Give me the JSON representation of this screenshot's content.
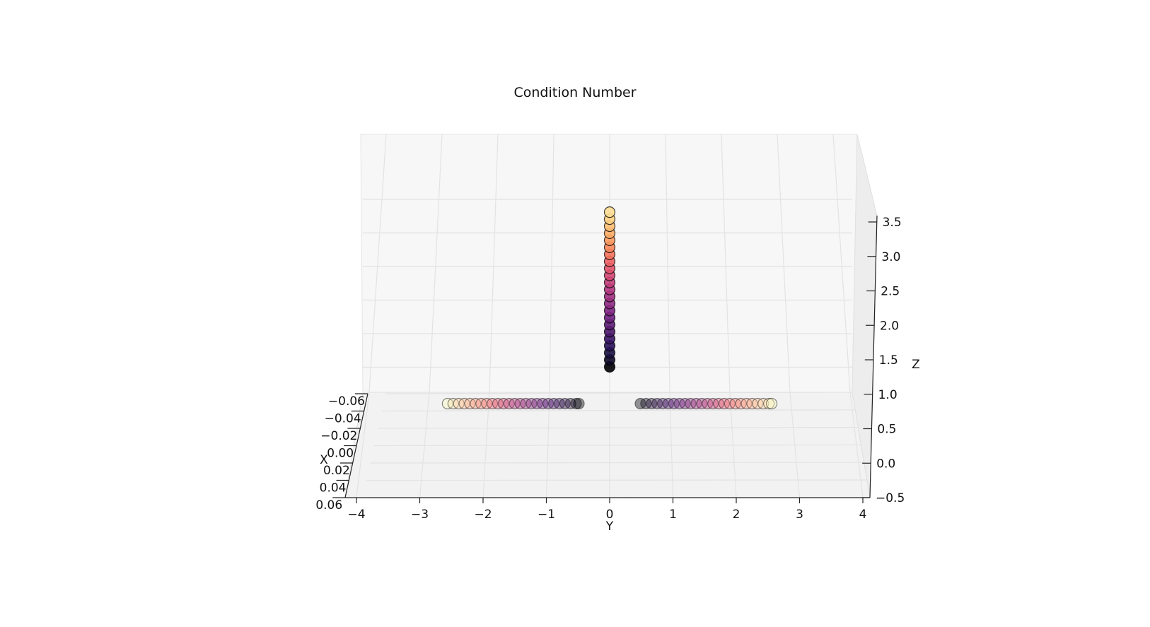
{
  "chart_data": {
    "type": "scatter",
    "title": "Condition Number",
    "xlabel": "X",
    "ylabel": "Y",
    "zlabel": "Z",
    "projection": "3d",
    "grid": true,
    "x_ticks": [
      "−0.06",
      "−0.04",
      "−0.02",
      "0.00",
      "0.02",
      "0.04",
      "0.06"
    ],
    "y_ticks": [
      "−4",
      "−3",
      "−2",
      "−1",
      "0",
      "1",
      "2",
      "3",
      "4"
    ],
    "z_ticks": [
      "−0.5",
      "0.0",
      "0.5",
      "1.0",
      "1.5",
      "2.0",
      "2.5",
      "3.0",
      "3.5"
    ],
    "xlim": [
      -0.06,
      0.06
    ],
    "ylim": [
      -4,
      4
    ],
    "zlim": [
      -0.5,
      3.7
    ],
    "colormap": "magma",
    "series": [
      {
        "points_y": [
          -2.9,
          -2.8,
          -2.7,
          -2.6,
          -2.5,
          -2.4,
          -2.3,
          -2.2,
          -2.1,
          -2.0,
          -1.9,
          -1.8,
          -1.7,
          -1.6,
          -1.5,
          -1.4,
          -1.3,
          -1.2,
          -1.1,
          -1.0,
          -0.9,
          -0.8,
          -0.7,
          -0.6,
          -0.55
        ],
        "points_x": 0,
        "points_z": 0.95,
        "colors": [
          "#fcfdbf",
          "#fde6b0",
          "#fed5a1",
          "#fec395",
          "#feb08a",
          "#fc9f81",
          "#f98e7b",
          "#f57c76",
          "#ef6a73",
          "#e45a74",
          "#d84c76",
          "#c9437a",
          "#ba3c7c",
          "#aa347f",
          "#9a2f80",
          "#8a2a80",
          "#7a2480",
          "#6a1f7d",
          "#5a1a76",
          "#4a176b",
          "#3b135c",
          "#2d1049",
          "#1f0c35",
          "#120922",
          "#000004"
        ],
        "alpha": 0.4
      },
      {
        "points_y": [
          0.55,
          0.65,
          0.75,
          0.85,
          0.95,
          1.05,
          1.15,
          1.25,
          1.35,
          1.45,
          1.55,
          1.65,
          1.75,
          1.85,
          1.95,
          2.05,
          2.15,
          2.25,
          2.35,
          2.45,
          2.55,
          2.65,
          2.75,
          2.85,
          2.9
        ],
        "points_x": 0,
        "points_z": 0.95,
        "colors": [
          "#000004",
          "#120922",
          "#1f0c35",
          "#2d1049",
          "#3b135c",
          "#4a176b",
          "#5a1a76",
          "#6a1f7d",
          "#7a2480",
          "#8a2a80",
          "#9a2f80",
          "#aa347f",
          "#ba3c7c",
          "#c9437a",
          "#d84c76",
          "#e45a74",
          "#ef6a73",
          "#f57c76",
          "#f98e7b",
          "#fc9f81",
          "#feb08a",
          "#fec395",
          "#fed5a1",
          "#fde6b0",
          "#fcfdbf"
        ],
        "alpha": 0.4
      },
      {
        "points_y": 0,
        "points_x": 0,
        "points_z": [
          1.5,
          1.6,
          1.7,
          1.8,
          1.9,
          2.0,
          2.1,
          2.2,
          2.3,
          2.4,
          2.5,
          2.6,
          2.7,
          2.8,
          2.9,
          3.0,
          3.1,
          3.2,
          3.3,
          3.4,
          3.5,
          3.6,
          3.7
        ],
        "colors": [
          "#000004",
          "#0d0826",
          "#1a1042",
          "#29115a",
          "#3a1466",
          "#4b176b",
          "#5c1b74",
          "#6d1f7e",
          "#7e2482",
          "#8f2a83",
          "#a03081",
          "#b1367e",
          "#c23d79",
          "#d24672",
          "#e0536b",
          "#ec6163",
          "#f4735d",
          "#f9865a",
          "#fc995d",
          "#feac66",
          "#febf73",
          "#fed183",
          "#fedd93"
        ],
        "alpha": 0.9
      }
    ]
  }
}
